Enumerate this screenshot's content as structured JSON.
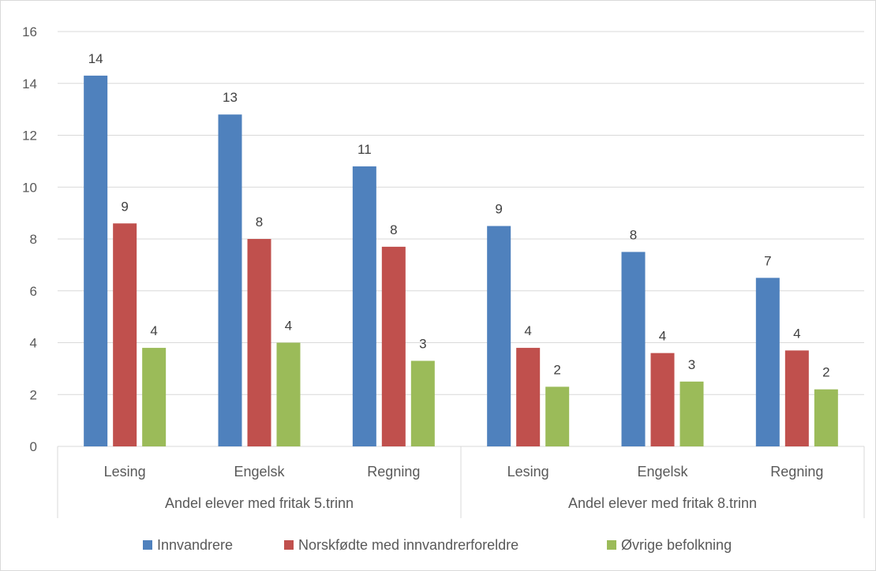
{
  "chart_data": {
    "type": "bar",
    "title": "",
    "xlabel": "",
    "ylabel": "",
    "ylim": [
      0,
      16
    ],
    "yticks": [
      0,
      2,
      4,
      6,
      8,
      10,
      12,
      14,
      16
    ],
    "grid": true,
    "legend_position": "bottom",
    "groups": [
      {
        "label": "Andel elever med fritak 5.trinn",
        "categories": [
          "Lesing",
          "Engelsk",
          "Regning"
        ]
      },
      {
        "label": "Andel elever med fritak 8.trinn",
        "categories": [
          "Lesing",
          "Engelsk",
          "Regning"
        ]
      }
    ],
    "categories": [
      "Lesing",
      "Engelsk",
      "Regning",
      "Lesing",
      "Engelsk",
      "Regning"
    ],
    "series": [
      {
        "name": "Innvandrere",
        "color": "#4f81bd",
        "values": [
          14.3,
          12.8,
          10.8,
          8.5,
          7.5,
          6.5
        ],
        "data_labels": [
          "14",
          "13",
          "11",
          "9",
          "8",
          "7"
        ]
      },
      {
        "name": "Norskfødte med innvandrerforeldre",
        "color": "#c0504d",
        "values": [
          8.6,
          8.0,
          7.7,
          3.8,
          3.6,
          3.7
        ],
        "data_labels": [
          "9",
          "8",
          "8",
          "4",
          "4",
          "4"
        ]
      },
      {
        "name": "Øvrige befolkning",
        "color": "#9bbb59",
        "values": [
          3.8,
          4.0,
          3.3,
          2.3,
          2.5,
          2.2
        ],
        "data_labels": [
          "4",
          "4",
          "3",
          "2",
          "3",
          "2"
        ]
      }
    ]
  }
}
